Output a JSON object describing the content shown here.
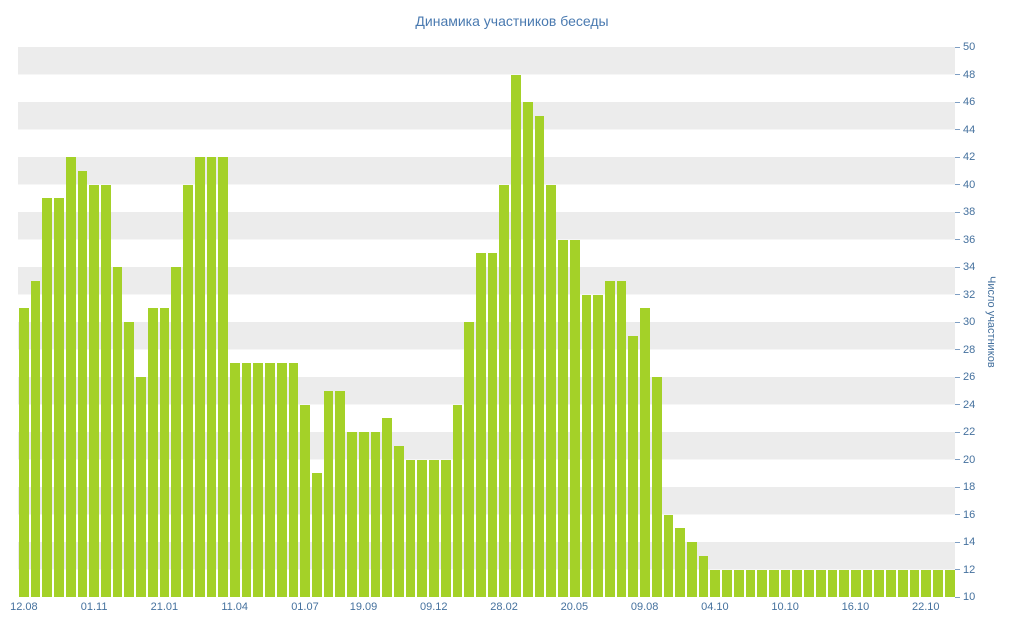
{
  "colors": {
    "background": "#ffffff",
    "stripe": "#ececec",
    "bar": "#a4d128",
    "title_text": "#4a7ab0",
    "axis_text": "#45719e",
    "tick": "#7f9fc4"
  },
  "chart_data": {
    "type": "bar",
    "title": "Динамика участников беседы",
    "xlabel": "",
    "ylabel": "Число участников",
    "ylim": [
      10,
      50
    ],
    "grid": "horizontal-stripes",
    "legend": "none",
    "y_ticks": [
      10,
      12,
      14,
      16,
      18,
      20,
      22,
      24,
      26,
      28,
      30,
      32,
      34,
      36,
      38,
      40,
      42,
      44,
      46,
      48,
      50
    ],
    "x_tick_labels": [
      "12.08",
      "01.11",
      "21.01",
      "11.04",
      "01.07",
      "19.09",
      "09.12",
      "28.02",
      "20.05",
      "09.08",
      "04.10",
      "10.10",
      "16.10",
      "22.10"
    ],
    "x_tick_indices": [
      0,
      6,
      12,
      18,
      24,
      29,
      35,
      41,
      47,
      53,
      59,
      65,
      71,
      77
    ],
    "values": [
      31,
      33,
      39,
      39,
      42,
      41,
      40,
      40,
      34,
      30,
      26,
      31,
      31,
      34,
      40,
      42,
      42,
      42,
      27,
      27,
      27,
      27,
      27,
      27,
      24,
      19,
      25,
      25,
      22,
      22,
      22,
      23,
      21,
      20,
      20,
      20,
      20,
      24,
      30,
      35,
      35,
      40,
      48,
      46,
      45,
      40,
      36,
      36,
      32,
      32,
      33,
      33,
      29,
      31,
      26,
      16,
      15,
      14,
      13,
      12,
      12,
      12,
      12,
      12,
      12,
      12,
      12,
      12,
      12,
      12,
      12,
      12,
      12,
      12,
      12,
      12,
      12,
      12,
      12,
      12
    ]
  }
}
